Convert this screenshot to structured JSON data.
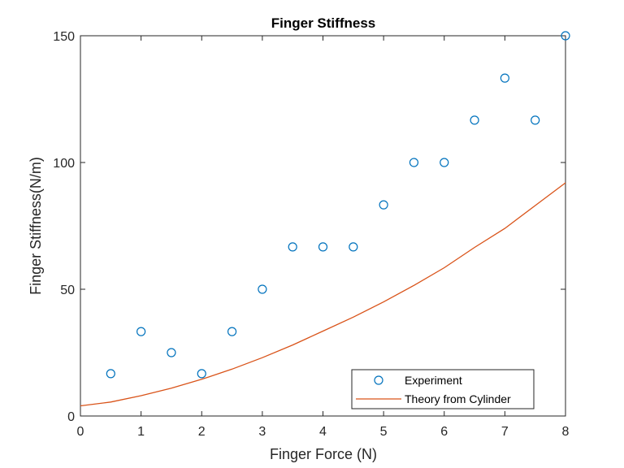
{
  "chart_data": {
    "type": "scatter",
    "title": "Finger Stiffness",
    "xlabel": "Finger Force (N)",
    "ylabel": "Finger Stiffness(N/m)",
    "xlim": [
      0,
      8
    ],
    "ylim": [
      0,
      150
    ],
    "xticks": [
      "0",
      "1",
      "2",
      "3",
      "4",
      "5",
      "6",
      "7",
      "8"
    ],
    "yticks": [
      "0",
      "50",
      "100",
      "150"
    ],
    "grid": false,
    "legend_position": "bottom-right",
    "series": [
      {
        "name": "Experiment",
        "type": "scatter",
        "color": "#0072BD",
        "marker": "circle-open",
        "x": [
          0.5,
          1.0,
          1.5,
          2.0,
          2.5,
          3.0,
          3.5,
          4.0,
          4.5,
          5.0,
          5.5,
          6.0,
          6.5,
          7.0,
          7.5,
          8.0
        ],
        "y": [
          16.7,
          33.3,
          25.0,
          16.7,
          33.3,
          50.0,
          66.7,
          66.7,
          66.7,
          83.3,
          100.0,
          100.0,
          116.7,
          133.3,
          116.7,
          150.0
        ]
      },
      {
        "name": "Theory from Cylinder",
        "type": "line",
        "color": "#D95319",
        "x": [
          0,
          0.5,
          1.0,
          1.5,
          2.0,
          2.5,
          3.0,
          3.5,
          4.0,
          4.5,
          5.0,
          5.5,
          6.0,
          6.5,
          7.0,
          7.5,
          8.0
        ],
        "y": [
          4.0,
          5.5,
          8.0,
          11.0,
          14.5,
          18.5,
          23.0,
          28.0,
          33.5,
          39.0,
          45.0,
          51.5,
          58.5,
          66.5,
          74.0,
          83.0,
          92.0
        ]
      }
    ]
  }
}
